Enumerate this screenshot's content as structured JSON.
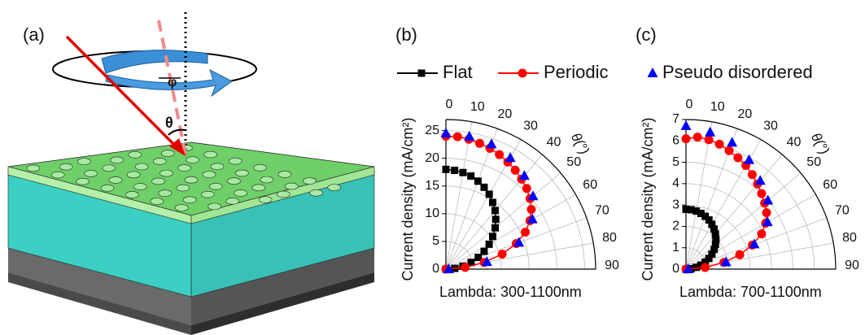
{
  "illustration": {
    "label": "(a)",
    "azimuth_label": "φ",
    "incidence_label": "θ"
  },
  "chart_data": [
    {
      "type": "polar",
      "panel_label": "(b)",
      "theta_label": "θ(°)",
      "r_label": "Current density (mA/cm²)",
      "x_label": "Lambda: 300-1100nm",
      "theta": [
        0,
        5,
        10,
        15,
        20,
        25,
        30,
        35,
        40,
        45,
        50,
        55,
        60,
        65,
        70,
        75,
        80,
        85,
        90
      ],
      "thetaticks": [
        0,
        10,
        20,
        30,
        40,
        50,
        60,
        70,
        80,
        90
      ],
      "ylim": [
        0,
        27
      ],
      "yticks": [
        0,
        5,
        10,
        15,
        20,
        25
      ],
      "grid": true,
      "series": [
        {
          "name": "Flat",
          "color": "#000000",
          "marker": "square",
          "line": true,
          "values": [
            18,
            17.9,
            17.7,
            17.4,
            16.9,
            16.3,
            15.6,
            14.7,
            13.8,
            12.7,
            11.6,
            10.3,
            9,
            7.6,
            6.2,
            4.7,
            3.1,
            1.6,
            0
          ]
        },
        {
          "name": "Periodic",
          "color": "#ff0000",
          "marker": "circle",
          "line": true,
          "values": [
            24,
            24,
            23.8,
            23.5,
            23.2,
            22.8,
            22.3,
            21.8,
            21.2,
            20.6,
            19.8,
            18.8,
            17.5,
            15.8,
            13.5,
            10.5,
            7,
            3.5,
            0
          ]
        },
        {
          "name": "Pseudo disordered",
          "color": "#0000ff",
          "marker": "triangle",
          "line": false,
          "values": [
            24.5,
            null,
            24.3,
            null,
            24,
            null,
            23.2,
            null,
            22,
            null,
            20.5,
            null,
            18,
            null,
            14,
            null,
            7.5,
            null,
            0.5
          ]
        }
      ]
    },
    {
      "type": "polar",
      "panel_label": "(c)",
      "theta_label": "θ(°)",
      "r_label": "Current density (mA/cm²)",
      "x_label": "Lambda: 700-1100nm",
      "theta": [
        0,
        5,
        10,
        15,
        20,
        25,
        30,
        35,
        40,
        45,
        50,
        55,
        60,
        65,
        70,
        75,
        80,
        85,
        90
      ],
      "thetaticks": [
        0,
        10,
        20,
        30,
        40,
        50,
        60,
        70,
        80,
        90
      ],
      "ylim": [
        0,
        7
      ],
      "yticks": [
        0,
        1,
        2,
        3,
        4,
        5,
        6,
        7
      ],
      "grid": true,
      "series": [
        {
          "color": "#000000",
          "marker": "square",
          "line": true,
          "values": [
            2.8,
            2.79,
            2.76,
            2.7,
            2.63,
            2.54,
            2.42,
            2.29,
            2.14,
            1.98,
            1.8,
            1.61,
            1.4,
            1.18,
            0.96,
            0.72,
            0.49,
            0.24,
            0
          ]
        },
        {
          "color": "#ff0000",
          "marker": "circle",
          "line": true,
          "values": [
            6.1,
            6.2,
            6.15,
            6.05,
            5.9,
            5.75,
            5.6,
            5.4,
            5.2,
            5,
            4.8,
            4.6,
            4.3,
            3.9,
            3.3,
            2.6,
            1.8,
            0.9,
            0
          ]
        },
        {
          "color": "#0000ff",
          "marker": "triangle",
          "line": false,
          "values": [
            6.7,
            null,
            6.5,
            null,
            6.3,
            null,
            5.9,
            null,
            5.4,
            null,
            5,
            null,
            4.4,
            null,
            3.4,
            null,
            1.9,
            null,
            0.1
          ]
        }
      ]
    }
  ]
}
